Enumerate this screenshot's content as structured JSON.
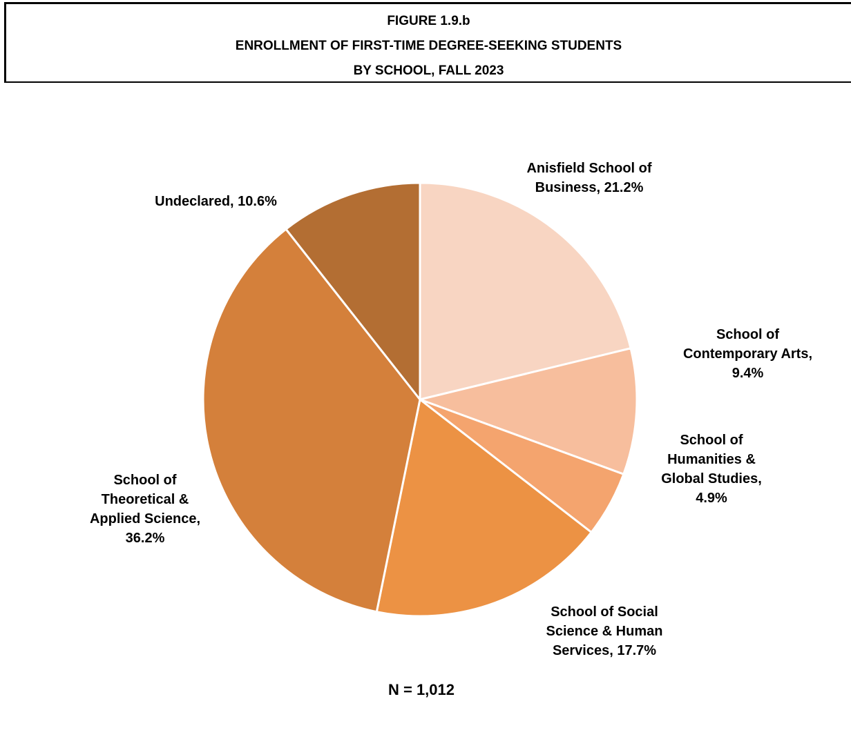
{
  "figure": {
    "number": "FIGURE 1.9.b",
    "title_line1": "ENROLLMENT OF FIRST-TIME DEGREE-SEEKING STUDENTS",
    "title_line2": "BY SCHOOL, FALL 2023"
  },
  "chart_data": {
    "type": "pie",
    "title": "ENROLLMENT OF FIRST-TIME DEGREE-SEEKING STUDENTS BY SCHOOL, FALL 2023",
    "start": "12 o'clock",
    "direction": "clockwise",
    "slices": [
      {
        "category": "Anisfield School of Business",
        "value": 21.2,
        "label_lines": [
          "Anisfield School of",
          "Business, 21.2%"
        ],
        "color": "#F8D5C2"
      },
      {
        "category": "School of Contemporary Arts",
        "value": 9.4,
        "label_lines": [
          "School of",
          "Contemporary Arts,",
          "9.4%"
        ],
        "color": "#F7BE9D"
      },
      {
        "category": "School of Humanities & Global Studies",
        "value": 4.9,
        "label_lines": [
          "School of",
          "Humanities &",
          "Global Studies,",
          "4.9%"
        ],
        "color": "#F4A46E"
      },
      {
        "category": "School of Social Science & Human Services",
        "value": 17.7,
        "label_lines": [
          "School of Social",
          "Science & Human",
          "Services, 17.7%"
        ],
        "color": "#EC9244"
      },
      {
        "category": "School of Theoretical & Applied Science",
        "value": 36.2,
        "label_lines": [
          "School of",
          "Theoretical &",
          "Applied Science,",
          "36.2%"
        ],
        "color": "#D4803B"
      },
      {
        "category": "Undeclared",
        "value": 10.6,
        "label_lines": [
          "Undeclared, 10.6%"
        ],
        "color": "#B36E33"
      }
    ],
    "note": "N = 1,012"
  }
}
